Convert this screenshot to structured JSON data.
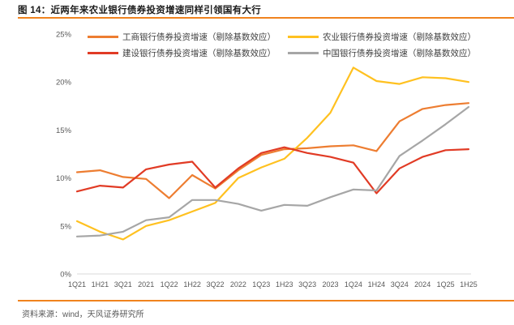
{
  "header": {
    "title": "图 14：近两年来农业银行债券投资增速同样引领国有大行"
  },
  "footer": {
    "source": "资料来源：wind，天风证券研究所"
  },
  "colors": {
    "accent_rule": "#F0831E",
    "icbc_orange": "#ED7D31",
    "abc_yellow": "#FFC120",
    "ccb_red": "#E13B25",
    "boc_gray": "#A6A6A6",
    "axis_line": "#D9D9D9",
    "tick_text": "#595959"
  },
  "chart_data": {
    "type": "line",
    "categories": [
      "1Q21",
      "1H21",
      "3Q21",
      "2021",
      "1Q22",
      "1H22",
      "3Q22",
      "2022",
      "1Q23",
      "1H23",
      "3Q23",
      "2023",
      "1Q24",
      "1H24",
      "3Q24",
      "2024",
      "1Q25",
      "1H25"
    ],
    "series": [
      {
        "name": "工商银行债券投资增速（剔除基数效应）",
        "color": "#ED7D31",
        "values": [
          10.6,
          10.8,
          10.1,
          9.9,
          7.9,
          10.3,
          8.9,
          10.8,
          12.4,
          13.0,
          13.1,
          13.3,
          13.4,
          12.8,
          15.9,
          17.2,
          17.6,
          17.8
        ]
      },
      {
        "name": "农业银行债券投资增速（剔除基数效应）",
        "color": "#FFC120",
        "values": [
          5.5,
          4.4,
          3.6,
          5.0,
          5.6,
          6.5,
          7.4,
          10.0,
          11.1,
          12.0,
          14.2,
          16.8,
          21.5,
          20.1,
          19.8,
          20.5,
          20.4,
          20.0
        ]
      },
      {
        "name": "建设银行债券投资增速（剔除基数效应）",
        "color": "#E13B25",
        "values": [
          8.6,
          9.2,
          9.0,
          10.9,
          11.4,
          11.7,
          9.0,
          11.0,
          12.6,
          13.2,
          12.6,
          12.2,
          11.6,
          8.4,
          11.0,
          12.2,
          12.9,
          13.0
        ]
      },
      {
        "name": "中国银行债券投资增速（剔除基数效应）",
        "color": "#A6A6A6",
        "values": [
          3.9,
          4.0,
          4.4,
          5.6,
          5.9,
          7.7,
          7.7,
          7.3,
          6.6,
          7.2,
          7.1,
          8.0,
          8.8,
          8.7,
          12.3,
          13.9,
          15.6,
          17.4
        ]
      }
    ],
    "xlabel": "",
    "ylabel": "",
    "ylim": [
      0,
      25
    ],
    "ytick_step": 5,
    "ytick_suffix": "%",
    "grid": false,
    "legend_position": "top"
  }
}
